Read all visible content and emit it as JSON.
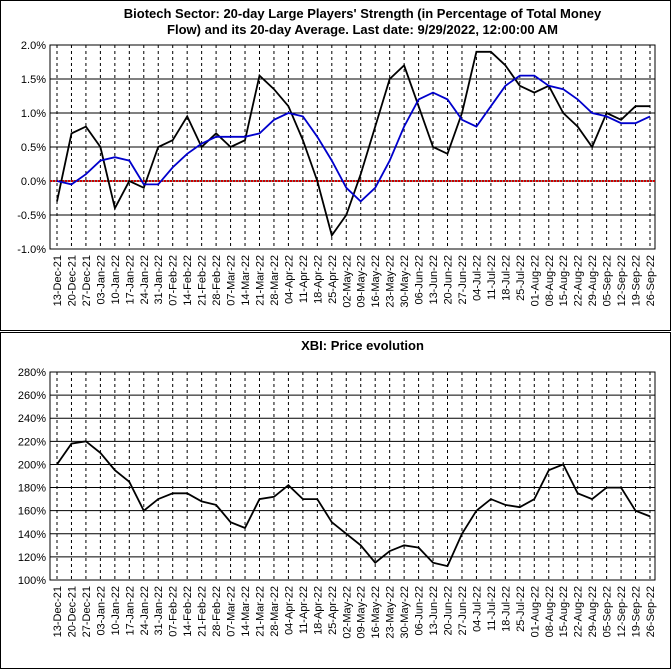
{
  "chart_data": [
    {
      "type": "line",
      "title": [
        "Biotech Sector: 20-day Large Players' Strength (in Percentage of Total Money",
        "Flow) and its 20-day Average. Last date: 9/29/2022, 12:00:00 AM"
      ],
      "categories": [
        "13-Dec-21",
        "20-Dec-21",
        "27-Dec-21",
        "03-Jan-22",
        "10-Jan-22",
        "17-Jan-22",
        "24-Jan-22",
        "31-Jan-22",
        "07-Feb-22",
        "14-Feb-22",
        "21-Feb-22",
        "28-Feb-22",
        "07-Mar-22",
        "14-Mar-22",
        "21-Mar-22",
        "28-Mar-22",
        "04-Apr-22",
        "11-Apr-22",
        "18-Apr-22",
        "25-Apr-22",
        "02-May-22",
        "09-May-22",
        "16-May-22",
        "23-May-22",
        "30-May-22",
        "06-Jun-22",
        "13-Jun-22",
        "20-Jun-22",
        "27-Jun-22",
        "04-Jul-22",
        "11-Jul-22",
        "18-Jul-22",
        "25-Jul-22",
        "01-Aug-22",
        "08-Aug-22",
        "15-Aug-22",
        "22-Aug-22",
        "29-Aug-22",
        "05-Sep-22",
        "12-Sep-22",
        "19-Sep-22",
        "26-Sep-22"
      ],
      "series": [
        {
          "color": "#000000",
          "values": [
            -0.3,
            0.7,
            0.8,
            0.5,
            -0.4,
            0.0,
            -0.1,
            0.5,
            0.6,
            0.95,
            0.5,
            0.7,
            0.5,
            0.6,
            1.55,
            1.35,
            1.1,
            0.6,
            0.0,
            -0.8,
            -0.5,
            0.1,
            0.8,
            1.5,
            1.7,
            1.1,
            0.5,
            0.4,
            1.0,
            1.9,
            1.9,
            1.7,
            1.4,
            1.3,
            1.4,
            1.0,
            0.8,
            0.5,
            1.0,
            0.9,
            1.1,
            1.1
          ]
        },
        {
          "color": "#0000cc",
          "values": [
            0.0,
            -0.05,
            0.1,
            0.3,
            0.35,
            0.3,
            -0.05,
            -0.05,
            0.2,
            0.4,
            0.55,
            0.65,
            0.65,
            0.65,
            0.7,
            0.9,
            1.0,
            0.95,
            0.65,
            0.3,
            -0.1,
            -0.3,
            -0.1,
            0.3,
            0.8,
            1.2,
            1.3,
            1.2,
            0.9,
            0.8,
            1.1,
            1.4,
            1.55,
            1.55,
            1.4,
            1.35,
            1.2,
            1.0,
            0.95,
            0.85,
            0.85,
            0.95
          ]
        }
      ],
      "ylim": [
        -1.0,
        2.0
      ],
      "yticks": [
        {
          "value": -1.0,
          "label": "-1.0%"
        },
        {
          "value": -0.5,
          "label": "-0.5%"
        },
        {
          "value": 0.0,
          "label": "0.0%"
        },
        {
          "value": 0.5,
          "label": "0.5%"
        },
        {
          "value": 1.0,
          "label": "1.0%"
        },
        {
          "value": 1.5,
          "label": "1.5%"
        },
        {
          "value": 2.0,
          "label": "2.0%"
        }
      ],
      "grid": true,
      "zero_line_color": "#cc0000"
    },
    {
      "type": "line",
      "title": [
        "XBI: Price evolution"
      ],
      "categories": [
        "13-Dec-21",
        "20-Dec-21",
        "27-Dec-21",
        "03-Jan-22",
        "10-Jan-22",
        "17-Jan-22",
        "24-Jan-22",
        "31-Jan-22",
        "07-Feb-22",
        "14-Feb-22",
        "21-Feb-22",
        "28-Feb-22",
        "07-Mar-22",
        "14-Mar-22",
        "21-Mar-22",
        "28-Mar-22",
        "04-Apr-22",
        "11-Apr-22",
        "18-Apr-22",
        "25-Apr-22",
        "02-May-22",
        "09-May-22",
        "16-May-22",
        "23-May-22",
        "30-May-22",
        "06-Jun-22",
        "13-Jun-22",
        "20-Jun-22",
        "27-Jun-22",
        "04-Jul-22",
        "11-Jul-22",
        "18-Jul-22",
        "25-Jul-22",
        "01-Aug-22",
        "08-Aug-22",
        "15-Aug-22",
        "22-Aug-22",
        "29-Aug-22",
        "05-Sep-22",
        "12-Sep-22",
        "19-Sep-22",
        "26-Sep-22"
      ],
      "series": [
        {
          "color": "#000000",
          "values": [
            200,
            218,
            220,
            210,
            195,
            185,
            160,
            170,
            175,
            175,
            168,
            165,
            150,
            145,
            170,
            172,
            182,
            170,
            170,
            150,
            140,
            130,
            115,
            125,
            130,
            128,
            115,
            112,
            140,
            160,
            170,
            165,
            163,
            170,
            195,
            200,
            175,
            170,
            180,
            180,
            160,
            155
          ]
        }
      ],
      "ylim": [
        100,
        280
      ],
      "yticks": [
        {
          "value": 100,
          "label": "100%"
        },
        {
          "value": 120,
          "label": "120%"
        },
        {
          "value": 140,
          "label": "140%"
        },
        {
          "value": 160,
          "label": "160%"
        },
        {
          "value": 180,
          "label": "180%"
        },
        {
          "value": 200,
          "label": "200%"
        },
        {
          "value": 220,
          "label": "220%"
        },
        {
          "value": 240,
          "label": "240%"
        },
        {
          "value": 260,
          "label": "260%"
        },
        {
          "value": 280,
          "label": "280%"
        }
      ],
      "grid": true
    }
  ]
}
